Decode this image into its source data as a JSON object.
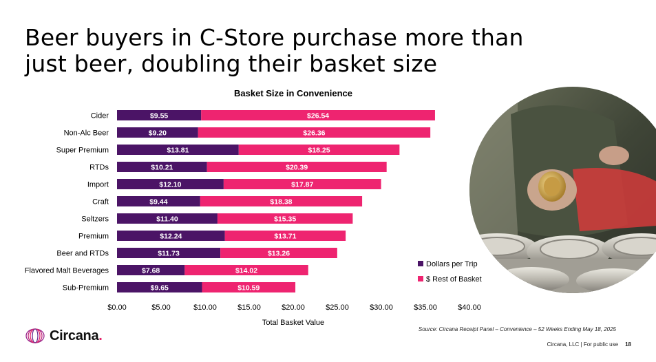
{
  "slide": {
    "title": "Beer buyers in C-Store purchase more than just beer, doubling their basket size",
    "source": "Source: Circana Receipt Panel – Convenience – 52 Weeks Ending May 18, 2025",
    "footer": "Circana, LLC | For public use",
    "page_number": "18",
    "logo_text": "Circana",
    "logo_dot": "."
  },
  "chart_data": {
    "type": "bar",
    "orientation": "horizontal",
    "stacked": true,
    "title": "Basket Size in Convenience",
    "xlabel": "Total Basket Value",
    "ylabel": "",
    "xlim": [
      0,
      40
    ],
    "x_ticks": [
      "$0.00",
      "$5.00",
      "$10.00",
      "$15.00",
      "$20.00",
      "$25.00",
      "$30.00",
      "$35.00",
      "$40.00"
    ],
    "categories": [
      "Cider",
      "Non-Alc Beer",
      "Super Premium",
      "RTDs",
      "Import",
      "Craft",
      "Seltzers",
      "Premium",
      "Beer and RTDs",
      "Flavored Malt Beverages",
      "Sub-Premium"
    ],
    "series": [
      {
        "name": "Dollars per Trip",
        "color": "#4b1466",
        "values": [
          9.55,
          9.2,
          13.81,
          10.21,
          12.1,
          9.44,
          11.4,
          12.24,
          11.73,
          7.68,
          9.65
        ],
        "labels": [
          "$9.55",
          "$9.20",
          "$13.81",
          "$10.21",
          "$12.10",
          "$9.44",
          "$11.40",
          "$12.24",
          "$11.73",
          "$7.68",
          "$9.65"
        ]
      },
      {
        "name": "$ Rest of Basket",
        "color": "#ee2470",
        "values": [
          26.54,
          26.36,
          18.25,
          20.39,
          17.87,
          18.38,
          15.35,
          13.71,
          13.26,
          14.02,
          10.59
        ],
        "labels": [
          "$26.54",
          "$26.36",
          "$18.25",
          "$20.39",
          "$17.87",
          "$18.38",
          "$15.35",
          "$13.71",
          "$13.26",
          "$14.02",
          "$10.59"
        ]
      }
    ],
    "grid": false,
    "legend_position": "bottom-right"
  }
}
